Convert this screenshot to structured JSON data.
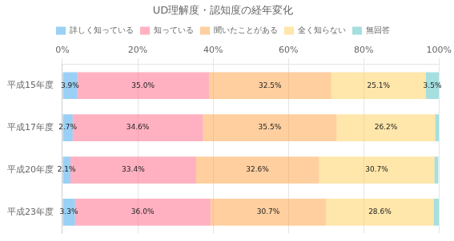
{
  "chart_data": {
    "type": "bar",
    "orientation": "horizontal",
    "stacked": true,
    "title": "UD理解度・認知度の経年変化",
    "categories": [
      "平成15年度",
      "平成17年度",
      "平成20年度",
      "平成23年度"
    ],
    "series": [
      {
        "name": "詳しく知っている",
        "values": [
          3.9,
          2.7,
          2.1,
          3.3
        ],
        "value_labels": [
          "3.9%",
          "2.7%",
          "2.1%",
          "3.3%"
        ]
      },
      {
        "name": "知っている",
        "values": [
          35.0,
          34.6,
          33.4,
          36.0
        ],
        "value_labels": [
          "35.0%",
          "34.6%",
          "33.4%",
          "36.0%"
        ]
      },
      {
        "name": "聞いたことがある",
        "values": [
          32.5,
          35.5,
          32.6,
          30.7
        ],
        "value_labels": [
          "32.5%",
          "35.5%",
          "32.6%",
          "30.7%"
        ]
      },
      {
        "name": "全く知らない",
        "values": [
          25.1,
          26.2,
          30.7,
          28.6
        ],
        "value_labels": [
          "25.1%",
          "26.2%",
          "30.7%",
          "28.6%"
        ]
      },
      {
        "name": "無回答",
        "values": [
          3.5,
          1.0,
          1.0,
          1.4
        ],
        "value_labels": [
          "3.5%",
          null,
          null,
          null
        ]
      }
    ],
    "xlim": [
      0,
      100
    ],
    "xticks": [
      {
        "value": 0,
        "label": "0%"
      },
      {
        "value": 20,
        "label": "20%"
      },
      {
        "value": 40,
        "label": "40%"
      },
      {
        "value": 60,
        "label": "60%"
      },
      {
        "value": 80,
        "label": "80%"
      },
      {
        "value": 100,
        "label": "100%"
      }
    ],
    "grid": true,
    "legend": "top",
    "data_labels": true
  }
}
